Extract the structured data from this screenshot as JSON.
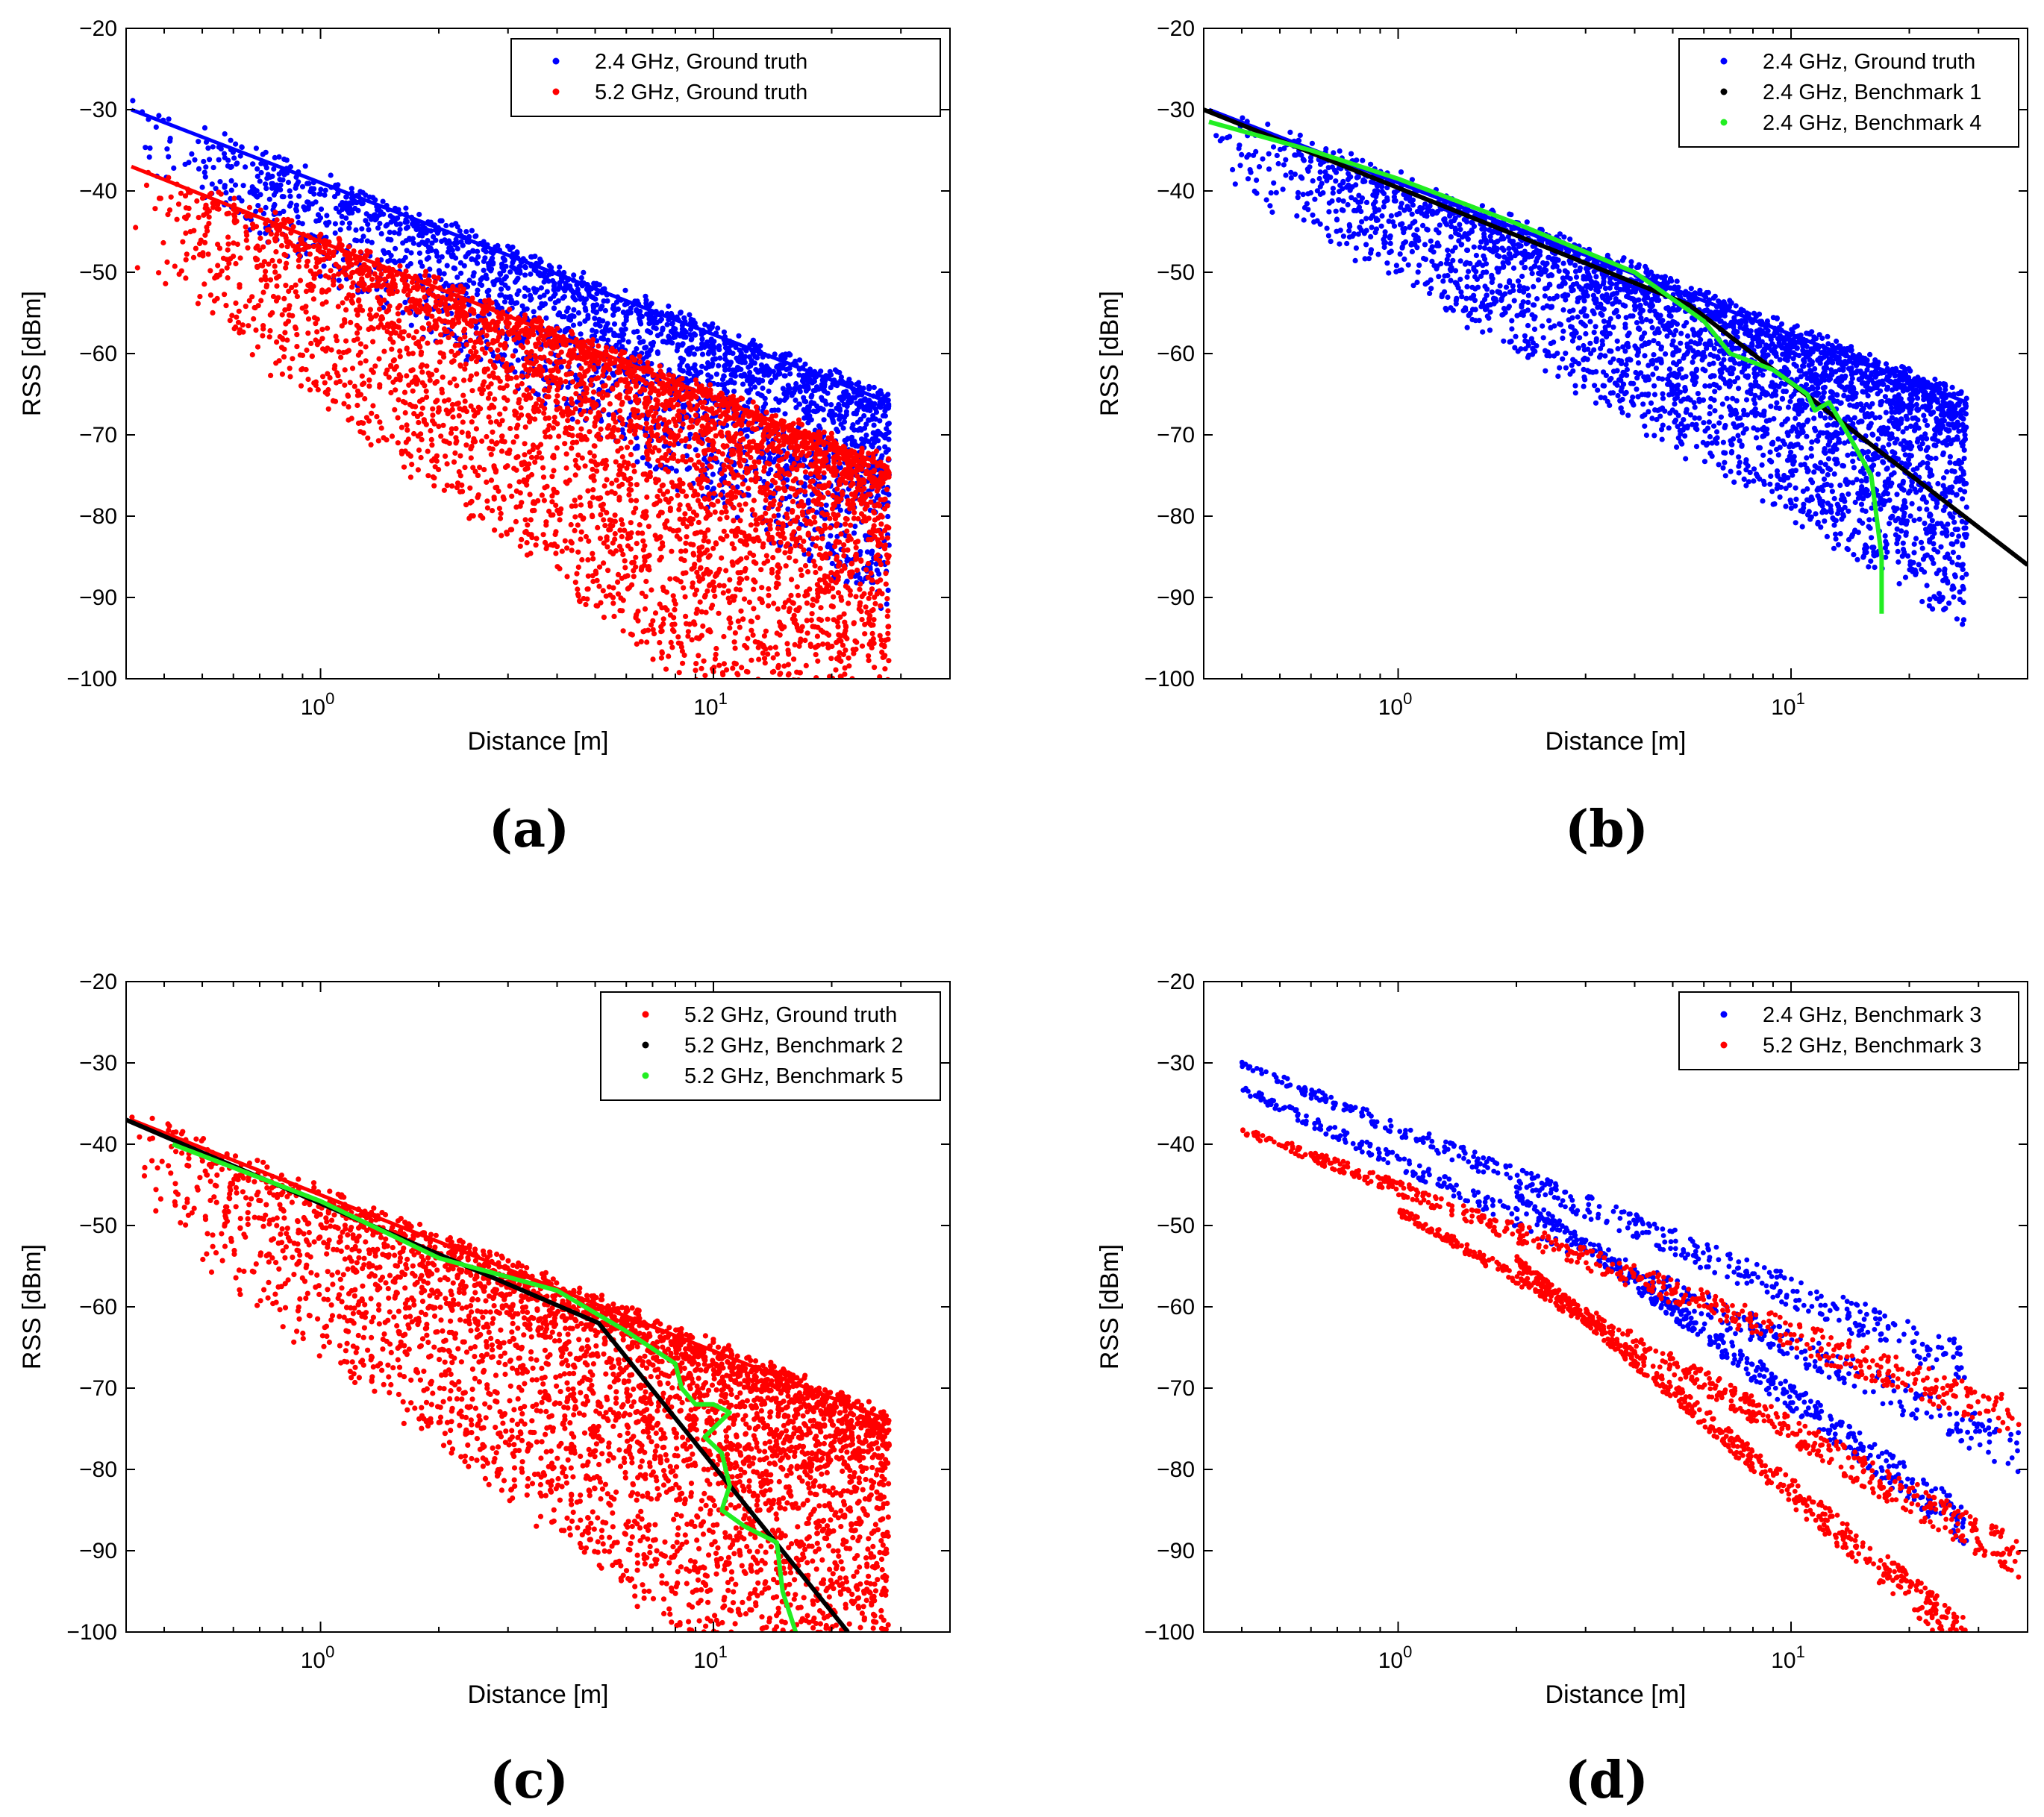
{
  "colors": {
    "blue": "#0000ff",
    "red": "#ff0000",
    "black": "#000000",
    "green": "#22ee22"
  },
  "chart_data": [
    {
      "type": "scatter",
      "panel_label": "(a)",
      "xlabel": "Distance [m]",
      "ylabel": "RSS [dBm]",
      "xscale": "log",
      "xlim": [
        0.32,
        40
      ],
      "ylim": [
        -100,
        -20
      ],
      "yticks": [
        -20,
        -30,
        -40,
        -50,
        -60,
        -70,
        -80,
        -90,
        -100
      ],
      "yticklabels": [
        "−20",
        "−30",
        "−40",
        "−50",
        "−60",
        "−70",
        "−80",
        "−90",
        "−100"
      ],
      "xticks": [
        1,
        10
      ],
      "xticklabels": [
        {
          "base": "10",
          "exp": "0"
        },
        {
          "base": "10",
          "exp": "1"
        }
      ],
      "legend_position": "top-right",
      "series": [
        {
          "name": "2.4 GHz, Ground truth",
          "color": "blue",
          "kind": "scatter",
          "upper_line": [
            [
              0.33,
              -30
            ],
            [
              28,
              -66
            ]
          ],
          "spread_dB": 25,
          "seed": 11,
          "count": 2600
        },
        {
          "name": "5.2 GHz, Ground truth",
          "color": "red",
          "kind": "scatter",
          "upper_line": [
            [
              0.33,
              -37
            ],
            [
              28,
              -74
            ]
          ],
          "spread_dB": 45,
          "seed": 23,
          "count": 4200
        }
      ]
    },
    {
      "type": "scatter",
      "panel_label": "(b)",
      "xlabel": "Distance [m]",
      "ylabel": "RSS [dBm]",
      "xscale": "log",
      "xlim": [
        0.32,
        40
      ],
      "ylim": [
        -100,
        -20
      ],
      "yticks": [
        -20,
        -30,
        -40,
        -50,
        -60,
        -70,
        -80,
        -90,
        -100
      ],
      "yticklabels": [
        "−20",
        "−30",
        "−40",
        "−50",
        "−60",
        "−70",
        "−80",
        "−90",
        "−100"
      ],
      "xticks": [
        1,
        10
      ],
      "xticklabels": [
        {
          "base": "10",
          "exp": "0"
        },
        {
          "base": "10",
          "exp": "1"
        }
      ],
      "legend_position": "top-right",
      "series": [
        {
          "name": "2.4 GHz, Ground truth",
          "color": "blue",
          "kind": "scatter",
          "upper_line": [
            [
              0.33,
              -30
            ],
            [
              28,
              -66
            ]
          ],
          "spread_dB": 27,
          "seed": 37,
          "count": 3600
        },
        {
          "name": "2.4 GHz, Benchmark 1",
          "color": "black",
          "kind": "line",
          "x": [
            0.32,
            5.5,
            40
          ],
          "y": [
            -30,
            -54,
            -86
          ]
        },
        {
          "name": "2.4 GHz, Benchmark 4",
          "color": "green",
          "kind": "line",
          "x": [
            0.33,
            0.6,
            1.0,
            2.0,
            4.0,
            6.0,
            7.0,
            9.0,
            11.0,
            11.5,
            12.5,
            14.0,
            16.0,
            16.5,
            17.0,
            17.0
          ],
          "y": [
            -31.5,
            -35,
            -38.5,
            -44,
            -50,
            -56,
            -60,
            -62,
            -65,
            -67,
            -66,
            -70,
            -75,
            -80,
            -85,
            -92
          ]
        }
      ]
    },
    {
      "type": "scatter",
      "panel_label": "(c)",
      "xlabel": "Distance [m]",
      "ylabel": "RSS [dBm]",
      "xscale": "log",
      "xlim": [
        0.32,
        40
      ],
      "ylim": [
        -100,
        -20
      ],
      "yticks": [
        -20,
        -30,
        -40,
        -50,
        -60,
        -70,
        -80,
        -90,
        -100
      ],
      "yticklabels": [
        "−20",
        "−30",
        "−40",
        "−50",
        "−60",
        "−70",
        "−80",
        "−90",
        "−100"
      ],
      "xticks": [
        1,
        10
      ],
      "xticklabels": [
        {
          "base": "10",
          "exp": "0"
        },
        {
          "base": "10",
          "exp": "1"
        }
      ],
      "legend_position": "top-right",
      "series": [
        {
          "name": "5.2 GHz, Ground truth",
          "color": "red",
          "kind": "scatter",
          "upper_line": [
            [
              0.33,
              -37
            ],
            [
              28,
              -74
            ]
          ],
          "spread_dB": 45,
          "seed": 53,
          "count": 4200
        },
        {
          "name": "5.2 GHz, Benchmark 2",
          "color": "black",
          "kind": "line",
          "x": [
            0.32,
            5.1,
            22
          ],
          "y": [
            -37,
            -62,
            -100
          ]
        },
        {
          "name": "5.2 GHz, Benchmark 5",
          "color": "green",
          "kind": "line",
          "x": [
            0.42,
            1.0,
            2.0,
            4.0,
            6.0,
            8.0,
            8.3,
            9.0,
            10.0,
            11.0,
            9.5,
            10.5,
            11.0,
            10.5,
            12.0,
            14.5,
            15.0,
            16.2
          ],
          "y": [
            -40,
            -47,
            -54,
            -58,
            -63,
            -67,
            -70,
            -72,
            -72,
            -73,
            -76,
            -78,
            -82,
            -85,
            -87,
            -89,
            -95,
            -100
          ]
        }
      ]
    },
    {
      "type": "scatter",
      "panel_label": "(d)",
      "xlabel": "Distance [m]",
      "ylabel": "RSS [dBm]",
      "xscale": "log",
      "xlim": [
        0.32,
        40
      ],
      "ylim": [
        -100,
        -20
      ],
      "yticks": [
        -20,
        -30,
        -40,
        -50,
        -60,
        -70,
        -80,
        -90,
        -100
      ],
      "yticklabels": [
        "−20",
        "−30",
        "−40",
        "−50",
        "−60",
        "−70",
        "−80",
        "−90",
        "−100"
      ],
      "xticks": [
        1,
        10
      ],
      "xticklabels": [
        {
          "base": "10",
          "exp": "0"
        },
        {
          "base": "10",
          "exp": "1"
        }
      ],
      "legend_position": "top-right",
      "series": [
        {
          "name": "2.4 GHz, Benchmark 3",
          "color": "blue",
          "kind": "bands",
          "bands": [
            [
              [
                0.4,
                -30
              ],
              [
                28,
                -66
              ]
            ],
            [
              [
                0.4,
                -33
              ],
              [
                38,
                -77
              ]
            ],
            [
              [
                2.0,
                -46
              ],
              [
                28,
                -86
              ]
            ]
          ],
          "seed": 71,
          "count": 1300
        },
        {
          "name": "5.2 GHz, Benchmark 3",
          "color": "red",
          "kind": "bands",
          "bands": [
            [
              [
                0.4,
                -38
              ],
              [
                38,
                -73
              ]
            ],
            [
              [
                1.0,
                -48
              ],
              [
                38,
                -90
              ]
            ],
            [
              [
                2.0,
                -54
              ],
              [
                28,
                -100
              ]
            ]
          ],
          "seed": 89,
          "count": 1700
        }
      ]
    }
  ]
}
